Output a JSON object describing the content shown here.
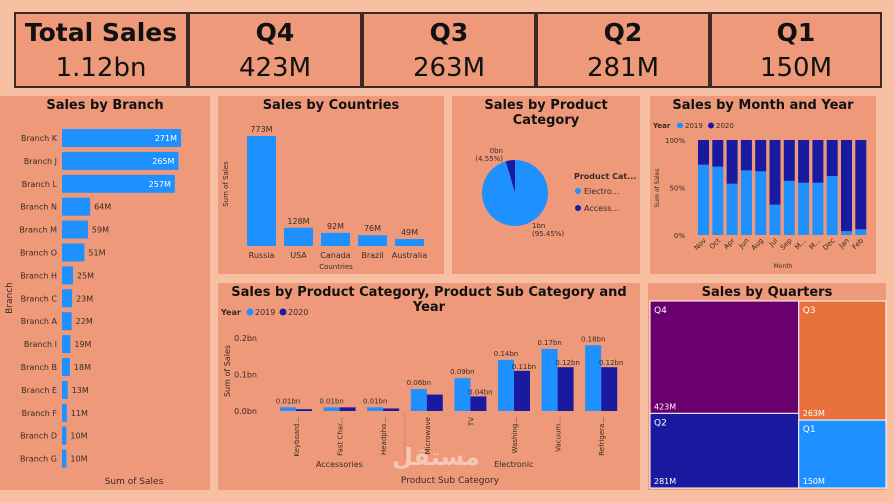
{
  "kpis": [
    {
      "label": "Total Sales",
      "value": "1.12bn"
    },
    {
      "label": "Q4",
      "value": "423M"
    },
    {
      "label": "Q3",
      "value": "263M"
    },
    {
      "label": "Q2",
      "value": "281M"
    },
    {
      "label": "Q1",
      "value": "150M"
    }
  ],
  "colors": {
    "page": "#f7c0a3",
    "panel": "#ee9a7a",
    "blue": "#1e90ff",
    "navy": "#1a1aa0",
    "purple": "#6a006e",
    "orange": "#e8703a"
  },
  "watermark": "مستقل",
  "chart_data": [
    {
      "id": "branch",
      "type": "bar",
      "orientation": "horizontal",
      "title": "Sales by Branch",
      "xlabel": "Sum of Sales",
      "ylabel": "Branch",
      "categories": [
        "Branch K",
        "Branch J",
        "Branch L",
        "Branch N",
        "Branch M",
        "Branch O",
        "Branch H",
        "Branch C",
        "Branch A",
        "Branch I",
        "Branch B",
        "Branch E",
        "Branch F",
        "Branch D",
        "Branch G"
      ],
      "values": [
        271,
        265,
        257,
        64,
        59,
        51,
        25,
        23,
        22,
        19,
        18,
        13,
        11,
        10,
        10
      ],
      "data_labels": [
        "271M",
        "265M",
        "257M",
        "64M",
        "59M",
        "51M",
        "25M",
        "23M",
        "22M",
        "19M",
        "18M",
        "13M",
        "11M",
        "10M",
        "10M"
      ]
    },
    {
      "id": "countries",
      "type": "bar",
      "title": "Sales by Countries",
      "xlabel": "Countries",
      "ylabel": "Sum of Sales",
      "categories": [
        "Russia",
        "USA",
        "Canada",
        "Brazil",
        "Australia"
      ],
      "values": [
        773,
        128,
        92,
        76,
        49
      ],
      "data_labels": [
        "773M",
        "128M",
        "92M",
        "76M",
        "49M"
      ]
    },
    {
      "id": "category",
      "type": "pie",
      "title": "Sales by Product Category",
      "legend_title": "Product Cat...",
      "categories": [
        "Electro...",
        "Access..."
      ],
      "values": [
        95.45,
        4.55
      ],
      "data_labels": [
        "1bn\n(95.45%)",
        "0bn\n(4.55%)"
      ],
      "legend_position": "right"
    },
    {
      "id": "month",
      "type": "bar",
      "stacked": "100%",
      "title": "Sales by Month and Year",
      "xlabel": "Month",
      "ylabel": "Sum of Sales",
      "legend_title": "Year",
      "categories": [
        "Nov",
        "Oct",
        "Apr",
        "Jun",
        "Aug",
        "Jul",
        "Sep",
        "M...",
        "M...",
        "Dec",
        "Jan",
        "Feb"
      ],
      "series": [
        {
          "name": "2019",
          "values": [
            74,
            72,
            54,
            68,
            67,
            32,
            57,
            55,
            55,
            62,
            4,
            6
          ]
        },
        {
          "name": "2020",
          "values": [
            26,
            28,
            46,
            32,
            33,
            68,
            43,
            45,
            45,
            38,
            96,
            94
          ]
        }
      ],
      "yticks": [
        "0%",
        "50%",
        "100%"
      ],
      "ylim": [
        0,
        100
      ]
    },
    {
      "id": "subcategory",
      "type": "bar",
      "title": "Sales by Product Category, Product Sub Category and Year",
      "xlabel": "Product Sub Category",
      "ylabel": "Sum of Sales",
      "legend_title": "Year",
      "categories": [
        "Keyboard...",
        "Fast Char...",
        "Headpho...",
        "Microwave",
        "TV",
        "Washing...",
        "Vacuum...",
        "Refrigera..."
      ],
      "groups": [
        {
          "name": "Accessories",
          "count": 3
        },
        {
          "name": "Electronic",
          "count": 5
        }
      ],
      "series": [
        {
          "name": "2019",
          "values": [
            0.01,
            0.01,
            0.01,
            0.06,
            0.09,
            0.14,
            0.17,
            0.18
          ],
          "labels": [
            "0.01bn",
            "0.01bn",
            "0.01bn",
            "0.06bn",
            "0.09bn",
            "0.14bn",
            "0.17bn",
            "0.18bn"
          ]
        },
        {
          "name": "2020",
          "values": [
            0.005,
            0.01,
            0.007,
            0.045,
            0.04,
            0.11,
            0.12,
            0.12
          ],
          "labels": [
            "",
            "",
            "",
            "",
            "0.04bn",
            "0.11bn",
            "0.12bn",
            "0.12bn"
          ]
        }
      ],
      "yticks": [
        "0.0bn",
        "0.1bn",
        "0.2bn"
      ],
      "ylim": [
        0,
        0.2
      ]
    },
    {
      "id": "quarters",
      "type": "treemap",
      "title": "Sales by Quarters",
      "categories": [
        "Q4",
        "Q3",
        "Q2",
        "Q1"
      ],
      "values": [
        423,
        263,
        281,
        150
      ],
      "data_labels": [
        "423M",
        "263M",
        "281M",
        "150M"
      ]
    }
  ]
}
